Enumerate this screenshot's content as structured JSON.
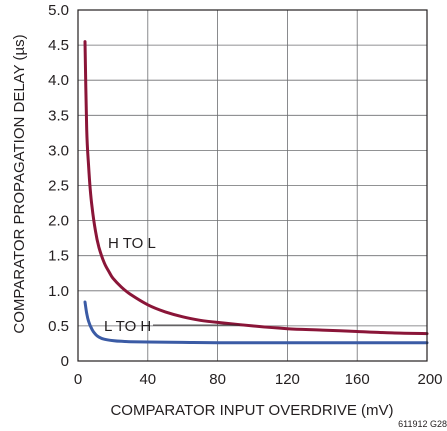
{
  "chart_data": {
    "type": "line",
    "xlabel": "COMPARATOR INPUT OVERDRIVE (mV)",
    "ylabel": "COMPARATOR PROPAGATION DELAY (µs)",
    "xlim": [
      0,
      200
    ],
    "ylim": [
      0,
      5.0
    ],
    "x_ticks": [
      "0",
      "40",
      "80",
      "120",
      "160",
      "200"
    ],
    "y_ticks": [
      "0",
      "0.5",
      "1.0",
      "1.5",
      "2.0",
      "2.5",
      "3.0",
      "3.5",
      "4.0",
      "4.5",
      "5.0"
    ],
    "grid": true,
    "series": [
      {
        "name": "H TO L",
        "color": "#8a1538",
        "x": [
          4,
          5,
          6,
          7,
          8,
          10,
          12,
          15,
          18,
          20,
          25,
          30,
          40,
          50,
          60,
          70,
          80,
          100,
          120,
          140,
          160,
          180,
          200
        ],
        "y": [
          4.55,
          3.3,
          2.8,
          2.45,
          2.2,
          1.85,
          1.62,
          1.4,
          1.26,
          1.18,
          1.05,
          0.95,
          0.8,
          0.7,
          0.63,
          0.58,
          0.55,
          0.5,
          0.46,
          0.44,
          0.42,
          0.4,
          0.39
        ]
      },
      {
        "name": "L TO H",
        "color": "#3b5ba5",
        "x": [
          4,
          5,
          6,
          8,
          10,
          12,
          15,
          20,
          25,
          30,
          40,
          60,
          80,
          120,
          160,
          200
        ],
        "y": [
          0.84,
          0.68,
          0.57,
          0.45,
          0.38,
          0.34,
          0.31,
          0.29,
          0.28,
          0.275,
          0.27,
          0.265,
          0.26,
          0.26,
          0.26,
          0.26
        ]
      }
    ],
    "annotations": [
      "H TO L",
      "L TO H"
    ],
    "note": "611912 G28"
  }
}
